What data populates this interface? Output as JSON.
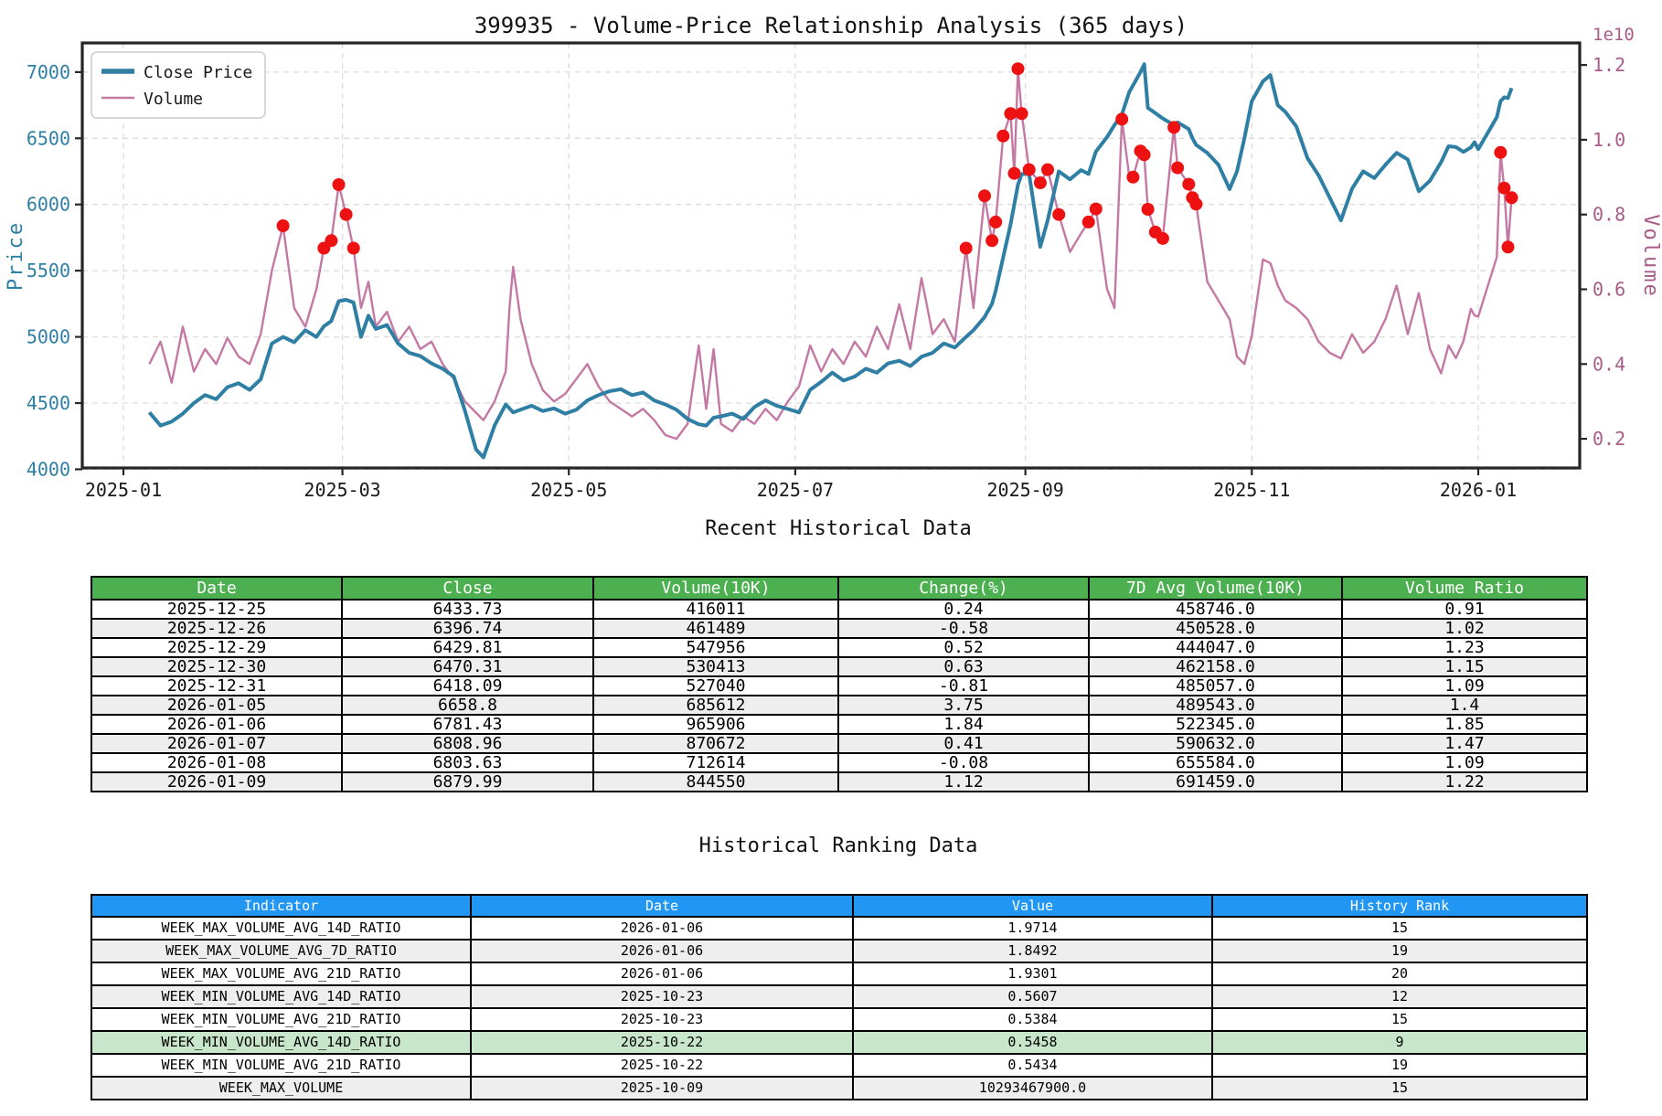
{
  "chart": {
    "title": "399935 - Volume-Price Relationship Analysis (365 days)",
    "legend": {
      "items": [
        {
          "label": "Close Price",
          "color": "#2e7fa3"
        },
        {
          "label": "Volume",
          "color": "#c478a4"
        }
      ]
    },
    "x_axis": {
      "tick_labels": [
        "2025-01",
        "2025-03",
        "2025-05",
        "2025-07",
        "2025-09",
        "2025-11",
        "2026-01"
      ],
      "tick_days": [
        0,
        59,
        120,
        181,
        243,
        304,
        365
      ]
    },
    "y_left": {
      "label": "Price",
      "color": "#2e7fa3",
      "ticks": [
        4000,
        4500,
        5000,
        5500,
        6000,
        6500,
        7000
      ]
    },
    "y_right": {
      "label": "Volume",
      "color": "#a85c88",
      "offset_text": "1e10",
      "ticks": [
        0.2,
        0.4,
        0.6,
        0.8,
        1.0,
        1.2
      ]
    }
  },
  "chart_data": {
    "type": "line",
    "title": "399935 - Volume-Price Relationship Analysis (365 days)",
    "x_unit": "days since 2025-01-01",
    "x_days": [
      7,
      10,
      13,
      16,
      19,
      22,
      25,
      28,
      31,
      34,
      37,
      40,
      43,
      46,
      49,
      52,
      54,
      56,
      58,
      60,
      62,
      64,
      66,
      68,
      71,
      74,
      77,
      80,
      83,
      86,
      89,
      92,
      95,
      97,
      100,
      103,
      104,
      105,
      107,
      110,
      113,
      116,
      119,
      122,
      125,
      128,
      131,
      134,
      137,
      140,
      143,
      146,
      149,
      152,
      155,
      157,
      159,
      161,
      164,
      167,
      170,
      173,
      176,
      179,
      182,
      185,
      188,
      191,
      194,
      197,
      200,
      203,
      206,
      209,
      212,
      215,
      218,
      221,
      224,
      227,
      229,
      232,
      234,
      235,
      237,
      239,
      240,
      241,
      242,
      244,
      247,
      249,
      252,
      255,
      258,
      260,
      262,
      265,
      267,
      269,
      271,
      272,
      274,
      275,
      276,
      278,
      280,
      283,
      284,
      287,
      288,
      289,
      292,
      295,
      298,
      300,
      302,
      304,
      307,
      309,
      311,
      313,
      316,
      319,
      322,
      325,
      328,
      331,
      334,
      337,
      340,
      343,
      346,
      349,
      352,
      355,
      357,
      359,
      361,
      363,
      364,
      365,
      370,
      371,
      372,
      373,
      374
    ],
    "series": [
      {
        "name": "Close Price",
        "axis": "left",
        "color": "#2e7fa3",
        "values": [
          4430,
          4330,
          4360,
          4420,
          4500,
          4560,
          4530,
          4620,
          4650,
          4600,
          4680,
          4950,
          5000,
          4960,
          5050,
          5000,
          5080,
          5120,
          5270,
          5280,
          5260,
          5000,
          5160,
          5060,
          5090,
          4950,
          4880,
          4855,
          4800,
          4760,
          4700,
          4445,
          4150,
          4090,
          4330,
          4490,
          4460,
          4430,
          4450,
          4480,
          4440,
          4460,
          4420,
          4450,
          4520,
          4560,
          4590,
          4605,
          4560,
          4580,
          4520,
          4490,
          4450,
          4380,
          4340,
          4330,
          4390,
          4400,
          4420,
          4380,
          4470,
          4520,
          4480,
          4455,
          4430,
          4600,
          4660,
          4730,
          4670,
          4700,
          4760,
          4730,
          4800,
          4820,
          4780,
          4850,
          4880,
          4950,
          4920,
          5000,
          5050,
          5150,
          5250,
          5350,
          5600,
          5850,
          6000,
          6150,
          6230,
          6230,
          5680,
          5880,
          6250,
          6190,
          6260,
          6230,
          6400,
          6510,
          6600,
          6680,
          6850,
          6900,
          7000,
          7060,
          6730,
          6690,
          6650,
          6600,
          6620,
          6570,
          6500,
          6450,
          6390,
          6300,
          6116,
          6250,
          6500,
          6780,
          6930,
          6978,
          6750,
          6700,
          6590,
          6350,
          6220,
          6050,
          5880,
          6120,
          6250,
          6200,
          6300,
          6390,
          6340,
          6100,
          6180,
          6320,
          6440,
          6434,
          6397,
          6430,
          6470,
          6418,
          6659,
          6781,
          6809,
          6804,
          6880
        ]
      },
      {
        "name": "Volume",
        "axis": "right",
        "color": "#c478a4",
        "unit": "1e10",
        "values": [
          0.4,
          0.46,
          0.35,
          0.5,
          0.38,
          0.44,
          0.4,
          0.47,
          0.42,
          0.4,
          0.48,
          0.65,
          0.77,
          0.55,
          0.5,
          0.6,
          0.71,
          0.73,
          0.88,
          0.8,
          0.71,
          0.55,
          0.62,
          0.5,
          0.54,
          0.46,
          0.5,
          0.44,
          0.46,
          0.4,
          0.36,
          0.3,
          0.27,
          0.25,
          0.3,
          0.38,
          0.55,
          0.66,
          0.52,
          0.4,
          0.33,
          0.3,
          0.32,
          0.36,
          0.4,
          0.34,
          0.3,
          0.28,
          0.26,
          0.28,
          0.25,
          0.21,
          0.2,
          0.24,
          0.45,
          0.28,
          0.44,
          0.24,
          0.22,
          0.26,
          0.24,
          0.28,
          0.25,
          0.3,
          0.34,
          0.45,
          0.38,
          0.44,
          0.4,
          0.46,
          0.42,
          0.5,
          0.44,
          0.56,
          0.44,
          0.63,
          0.48,
          0.52,
          0.46,
          0.71,
          0.55,
          0.85,
          0.73,
          0.78,
          1.01,
          1.07,
          0.91,
          1.19,
          1.07,
          0.92,
          0.885,
          0.92,
          0.8,
          0.7,
          0.75,
          0.78,
          0.815,
          0.6,
          0.55,
          1.055,
          0.9,
          0.9,
          0.97,
          0.96,
          0.814,
          0.753,
          0.736,
          1.033,
          0.925,
          0.881,
          0.845,
          0.828,
          0.62,
          0.57,
          0.52,
          0.42,
          0.4,
          0.475,
          0.68,
          0.67,
          0.61,
          0.57,
          0.55,
          0.52,
          0.46,
          0.43,
          0.415,
          0.48,
          0.43,
          0.46,
          0.52,
          0.61,
          0.48,
          0.59,
          0.44,
          0.375,
          0.45,
          0.416,
          0.461,
          0.548,
          0.53,
          0.527,
          0.686,
          0.966,
          0.871,
          0.713,
          0.845
        ]
      }
    ],
    "high_volume_markers": {
      "color": "#ee1111",
      "days": [
        43,
        54,
        56,
        58,
        60,
        62,
        227,
        232,
        234,
        235,
        237,
        239,
        240,
        241,
        242,
        244,
        247,
        249,
        252,
        260,
        262,
        269,
        272,
        274,
        275,
        276,
        278,
        280,
        283,
        284,
        287,
        288,
        289,
        371,
        372,
        373,
        374
      ]
    },
    "y_left_range": [
      4010,
      7220
    ],
    "y_right_range": [
      0.122,
      1.259
    ],
    "grid": true,
    "legend_position": "upper-left"
  },
  "recent_table": {
    "title": "Recent Historical Data",
    "header_color": "#4caf50",
    "columns": [
      "Date",
      "Close",
      "Volume(10K)",
      "Change(%)",
      "7D Avg Volume(10K)",
      "Volume Ratio"
    ],
    "rows": [
      [
        "2025-12-25",
        "6433.73",
        "416011",
        "0.24",
        "458746.0",
        "0.91"
      ],
      [
        "2025-12-26",
        "6396.74",
        "461489",
        "-0.58",
        "450528.0",
        "1.02"
      ],
      [
        "2025-12-29",
        "6429.81",
        "547956",
        "0.52",
        "444047.0",
        "1.23"
      ],
      [
        "2025-12-30",
        "6470.31",
        "530413",
        "0.63",
        "462158.0",
        "1.15"
      ],
      [
        "2025-12-31",
        "6418.09",
        "527040",
        "-0.81",
        "485057.0",
        "1.09"
      ],
      [
        "2026-01-05",
        "6658.8",
        "685612",
        "3.75",
        "489543.0",
        "1.4"
      ],
      [
        "2026-01-06",
        "6781.43",
        "965906",
        "1.84",
        "522345.0",
        "1.85"
      ],
      [
        "2026-01-07",
        "6808.96",
        "870672",
        "0.41",
        "590632.0",
        "1.47"
      ],
      [
        "2026-01-08",
        "6803.63",
        "712614",
        "-0.08",
        "655584.0",
        "1.09"
      ],
      [
        "2026-01-09",
        "6879.99",
        "844550",
        "1.12",
        "691459.0",
        "1.22"
      ]
    ]
  },
  "ranking_table": {
    "title": "Historical Ranking Data",
    "header_color": "#2196f3",
    "highlight_color": "#c8e6c9",
    "highlight_row_index": 5,
    "columns": [
      "Indicator",
      "Date",
      "Value",
      "History Rank"
    ],
    "rows": [
      [
        "WEEK_MAX_VOLUME_AVG_14D_RATIO",
        "2026-01-06",
        "1.9714",
        "15"
      ],
      [
        "WEEK_MAX_VOLUME_AVG_7D_RATIO",
        "2026-01-06",
        "1.8492",
        "19"
      ],
      [
        "WEEK_MAX_VOLUME_AVG_21D_RATIO",
        "2026-01-06",
        "1.9301",
        "20"
      ],
      [
        "WEEK_MIN_VOLUME_AVG_14D_RATIO",
        "2025-10-23",
        "0.5607",
        "12"
      ],
      [
        "WEEK_MIN_VOLUME_AVG_21D_RATIO",
        "2025-10-23",
        "0.5384",
        "15"
      ],
      [
        "WEEK_MIN_VOLUME_AVG_14D_RATIO",
        "2025-10-22",
        "0.5458",
        "9"
      ],
      [
        "WEEK_MIN_VOLUME_AVG_21D_RATIO",
        "2025-10-22",
        "0.5434",
        "19"
      ],
      [
        "WEEK_MAX_VOLUME",
        "2025-10-09",
        "10293467900.0",
        "15"
      ]
    ]
  }
}
